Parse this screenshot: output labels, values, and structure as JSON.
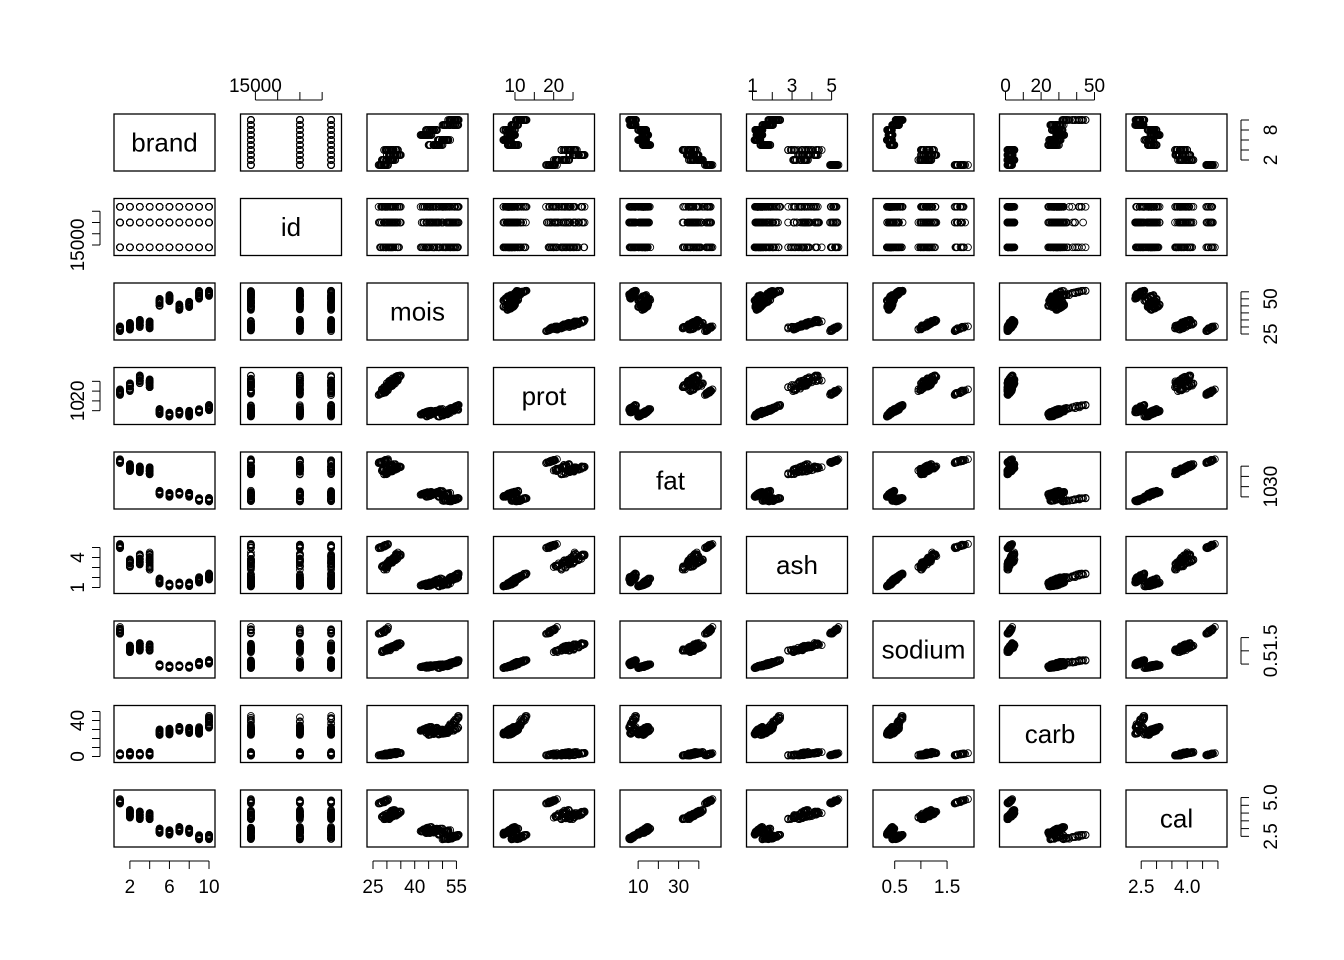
{
  "chart_data": {
    "type": "scatter",
    "title": "",
    "variables": [
      "brand",
      "id",
      "mois",
      "prot",
      "fat",
      "ash",
      "sodium",
      "carb",
      "cal"
    ],
    "axes": {
      "brand": {
        "range": [
          1,
          10
        ],
        "ticks": [
          2,
          4,
          6,
          8,
          10
        ],
        "tick_labels": [
          "2",
          "",
          "6",
          "",
          "10"
        ],
        "tick_labels_right": [
          "2",
          "",
          "",
          "8",
          ""
        ]
      },
      "id": {
        "range": [
          14000,
          24000
        ],
        "ticks": [
          15000,
          17500,
          20000,
          22500
        ],
        "tick_labels": [
          "15000",
          "",
          "",
          ""
        ]
      },
      "mois": {
        "range": [
          25,
          57
        ],
        "ticks": [
          25,
          30,
          35,
          40,
          45,
          50,
          55
        ],
        "tick_labels": [
          "25",
          "",
          "",
          "40",
          "",
          "",
          "55"
        ],
        "tick_labels_right": [
          "25",
          "",
          "",
          "",
          "",
          "50",
          ""
        ]
      },
      "prot": {
        "range": [
          6,
          29
        ],
        "ticks": [
          10,
          15,
          20,
          25
        ],
        "tick_labels": [
          "10",
          "",
          "20",
          ""
        ]
      },
      "fat": {
        "range": [
          4,
          48
        ],
        "ticks": [
          10,
          20,
          30,
          40
        ],
        "tick_labels": [
          "10",
          "",
          "30",
          ""
        ]
      },
      "ash": {
        "range": [
          1,
          5.5
        ],
        "ticks": [
          1,
          2,
          3,
          4,
          5
        ],
        "tick_labels": [
          "1",
          "",
          "3",
          "",
          "5"
        ],
        "tick_labels_left": [
          "1",
          "",
          "",
          "4",
          ""
        ]
      },
      "sodium": {
        "range": [
          0.2,
          1.9
        ],
        "ticks": [
          0.5,
          1.0,
          1.5
        ],
        "tick_labels": [
          "0.5",
          "",
          "1.5"
        ]
      },
      "carb": {
        "range": [
          0,
          50
        ],
        "ticks": [
          0,
          10,
          20,
          30,
          40,
          50
        ],
        "tick_labels": [
          "0",
          "",
          "20",
          "",
          "",
          "50"
        ],
        "tick_labels_left": [
          "0",
          "",
          "",
          "",
          "40",
          ""
        ]
      },
      "cal": {
        "range": [
          2.2,
          5.1
        ],
        "ticks": [
          2.5,
          3.0,
          3.5,
          4.0,
          4.5,
          5.0
        ],
        "tick_labels": [
          "2.5",
          "",
          "",
          "4.0",
          "",
          ""
        ],
        "tick_labels_right": [
          "2.5",
          "",
          "",
          "",
          "",
          "5.0"
        ]
      }
    },
    "groups": [
      {
        "brand": 1,
        "mois": [
          27,
          31
        ],
        "prot": [
          18,
          21
        ],
        "fat": [
          43,
          47
        ],
        "ash": [
          4.9,
          5.4
        ],
        "sodium": [
          1.6,
          1.9
        ],
        "carb": [
          1,
          4
        ],
        "cal": [
          4.6,
          4.9
        ]
      },
      {
        "brand": 2,
        "mois": [
          28,
          33
        ],
        "prot": [
          20,
          24
        ],
        "fat": [
          35,
          42
        ],
        "ash": [
          3.0,
          3.8
        ],
        "sodium": [
          0.95,
          1.2
        ],
        "carb": [
          1,
          5
        ],
        "cal": [
          3.7,
          4.2
        ]
      },
      {
        "brand": 3,
        "mois": [
          30,
          35
        ],
        "prot": [
          24,
          28
        ],
        "fat": [
          34,
          40
        ],
        "ash": [
          3.3,
          4.3
        ],
        "sodium": [
          1.0,
          1.3
        ],
        "carb": [
          1,
          4
        ],
        "cal": [
          3.6,
          4.1
        ]
      },
      {
        "brand": 4,
        "mois": [
          29,
          34
        ],
        "prot": [
          22,
          26
        ],
        "fat": [
          32,
          39
        ],
        "ash": [
          2.8,
          4.5
        ],
        "sodium": [
          1.0,
          1.25
        ],
        "carb": [
          1,
          5
        ],
        "cal": [
          3.6,
          4.0
        ]
      },
      {
        "brand": 5,
        "mois": [
          45,
          50
        ],
        "prot": [
          8,
          11
        ],
        "fat": [
          12,
          16
        ],
        "ash": [
          1.4,
          1.9
        ],
        "sodium": [
          0.4,
          0.5
        ],
        "carb": [
          24,
          30
        ],
        "cal": [
          2.7,
          3.0
        ]
      },
      {
        "brand": 6,
        "mois": [
          48,
          53
        ],
        "prot": [
          7,
          9
        ],
        "fat": [
          10,
          14
        ],
        "ash": [
          1.1,
          1.4
        ],
        "sodium": [
          0.35,
          0.45
        ],
        "carb": [
          24,
          31
        ],
        "cal": [
          2.6,
          2.9
        ]
      },
      {
        "brand": 7,
        "mois": [
          42,
          46
        ],
        "prot": [
          8,
          10
        ],
        "fat": [
          12,
          15
        ],
        "ash": [
          1.2,
          1.5
        ],
        "sodium": [
          0.38,
          0.46
        ],
        "carb": [
          28,
          33
        ],
        "cal": [
          2.8,
          3.1
        ]
      },
      {
        "brand": 8,
        "mois": [
          44,
          48
        ],
        "prot": [
          7,
          10
        ],
        "fat": [
          10,
          14
        ],
        "ash": [
          1.1,
          1.5
        ],
        "sodium": [
          0.35,
          0.45
        ],
        "carb": [
          26,
          32
        ],
        "cal": [
          2.7,
          3.0
        ]
      },
      {
        "brand": 9,
        "mois": [
          50,
          56
        ],
        "prot": [
          9,
          11
        ],
        "fat": [
          6,
          9
        ],
        "ash": [
          1.5,
          2.1
        ],
        "sodium": [
          0.45,
          0.6
        ],
        "carb": [
          25,
          33
        ],
        "cal": [
          2.3,
          2.6
        ]
      },
      {
        "brand": 10,
        "mois": [
          52,
          56
        ],
        "prot": [
          10,
          13
        ],
        "fat": [
          5,
          9
        ],
        "ash": [
          1.8,
          2.4
        ],
        "sodium": [
          0.5,
          0.65
        ],
        "carb": [
          30,
          45
        ],
        "cal": [
          2.3,
          2.6
        ]
      }
    ],
    "id_values": [
      14500,
      20000,
      23500
    ],
    "points_per_group": 30,
    "marker": "open-circle",
    "grid": false,
    "legend": "none"
  }
}
